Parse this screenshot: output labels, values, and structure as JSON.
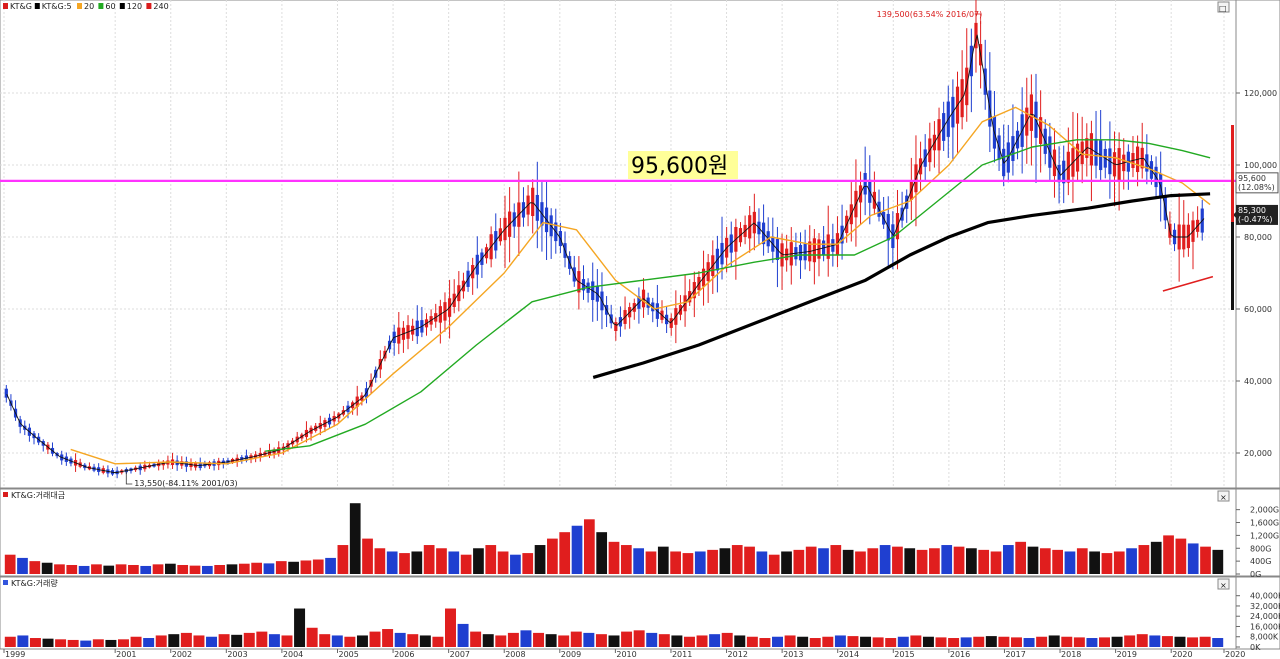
{
  "chart_data": [
    {
      "type": "candlestick",
      "panel": "price",
      "title": "",
      "ticker": "KT&G",
      "legend": [
        {
          "name": "KT&G",
          "color": "#d91c1c"
        },
        {
          "name": "KT&G:5",
          "color": "#000000"
        },
        {
          "name": "20",
          "color": "#f5a623"
        },
        {
          "name": "60",
          "color": "#22aa22"
        },
        {
          "name": "120",
          "color": "#000000"
        },
        {
          "name": "240",
          "color": "#d91c1c"
        }
      ],
      "ylim": [
        0,
        145000
      ],
      "y_ticks": [
        "20,000",
        "40,000",
        "60,000",
        "80,000",
        "100,000",
        "120,000"
      ],
      "y_tick_values": [
        20000,
        40000,
        60000,
        80000,
        100000,
        120000
      ],
      "x_ticks": [
        "1999",
        "2001",
        "2002",
        "2003",
        "2004",
        "2005",
        "2006",
        "2007",
        "2008",
        "2009",
        "2010",
        "2011",
        "2012",
        "2013",
        "2014",
        "2015",
        "2016",
        "2017",
        "2018",
        "2019",
        "2020",
        "2020"
      ],
      "x_tick_values": [
        1999.0,
        2001.0,
        2002.0,
        2003.0,
        2004.0,
        2005.0,
        2006.0,
        2007.0,
        2008.0,
        2009.0,
        2010.0,
        2011.0,
        2012.0,
        2013.0,
        2014.0,
        2015.0,
        2016.0,
        2017.0,
        2018.0,
        2019.0,
        2020.0,
        2020.95
      ],
      "close_series": [
        [
          1999.0,
          38000
        ],
        [
          1999.3,
          28000
        ],
        [
          1999.6,
          24000
        ],
        [
          2000.0,
          19000
        ],
        [
          2000.5,
          16000
        ],
        [
          2001.0,
          14500
        ],
        [
          2001.5,
          16000
        ],
        [
          2002.0,
          17500
        ],
        [
          2002.5,
          16500
        ],
        [
          2003.0,
          17500
        ],
        [
          2003.5,
          19000
        ],
        [
          2004.0,
          21000
        ],
        [
          2004.5,
          26000
        ],
        [
          2005.0,
          30000
        ],
        [
          2005.5,
          36000
        ],
        [
          2006.0,
          52000
        ],
        [
          2006.5,
          55000
        ],
        [
          2007.0,
          60000
        ],
        [
          2007.5,
          72000
        ],
        [
          2008.0,
          82000
        ],
        [
          2008.5,
          90000
        ],
        [
          2009.0,
          80000
        ],
        [
          2009.3,
          68000
        ],
        [
          2009.7,
          64000
        ],
        [
          2010.0,
          55000
        ],
        [
          2010.5,
          63000
        ],
        [
          2011.0,
          56000
        ],
        [
          2011.5,
          67000
        ],
        [
          2012.0,
          77000
        ],
        [
          2012.5,
          84000
        ],
        [
          2013.0,
          75000
        ],
        [
          2013.5,
          76000
        ],
        [
          2014.0,
          78000
        ],
        [
          2014.5,
          95000
        ],
        [
          2015.0,
          80000
        ],
        [
          2015.5,
          100000
        ],
        [
          2016.0,
          113000
        ],
        [
          2016.3,
          120000
        ],
        [
          2016.5,
          137000
        ],
        [
          2016.8,
          110000
        ],
        [
          2017.0,
          100000
        ],
        [
          2017.5,
          115000
        ],
        [
          2018.0,
          97000
        ],
        [
          2018.5,
          105000
        ],
        [
          2019.0,
          100000
        ],
        [
          2019.5,
          102000
        ],
        [
          2019.8,
          95000
        ],
        [
          2020.0,
          80000
        ],
        [
          2020.3,
          80000
        ],
        [
          2020.6,
          85300
        ]
      ],
      "ma20": [
        [
          2000.2,
          21000
        ],
        [
          2001.0,
          17000
        ],
        [
          2002.0,
          17500
        ],
        [
          2003.0,
          17000
        ],
        [
          2004.0,
          20000
        ],
        [
          2005.0,
          28000
        ],
        [
          2006.0,
          42000
        ],
        [
          2007.0,
          55000
        ],
        [
          2008.0,
          70000
        ],
        [
          2008.7,
          84000
        ],
        [
          2009.3,
          82000
        ],
        [
          2010.0,
          68000
        ],
        [
          2010.7,
          60000
        ],
        [
          2011.3,
          62000
        ],
        [
          2012.0,
          72000
        ],
        [
          2012.8,
          80000
        ],
        [
          2013.5,
          78000
        ],
        [
          2014.0,
          78000
        ],
        [
          2014.6,
          86000
        ],
        [
          2015.3,
          90000
        ],
        [
          2016.0,
          100000
        ],
        [
          2016.6,
          112000
        ],
        [
          2017.2,
          116000
        ],
        [
          2017.8,
          111000
        ],
        [
          2018.4,
          103000
        ],
        [
          2019.0,
          102000
        ],
        [
          2019.6,
          99000
        ],
        [
          2020.2,
          95000
        ],
        [
          2020.7,
          89000
        ]
      ],
      "ma60": [
        [
          2003.7,
          20500
        ],
        [
          2004.5,
          22000
        ],
        [
          2005.5,
          28000
        ],
        [
          2006.5,
          37000
        ],
        [
          2007.5,
          50000
        ],
        [
          2008.5,
          62000
        ],
        [
          2009.5,
          66000
        ],
        [
          2010.5,
          68000
        ],
        [
          2011.5,
          70000
        ],
        [
          2012.5,
          73000
        ],
        [
          2013.3,
          75000
        ],
        [
          2014.3,
          75000
        ],
        [
          2015.0,
          80000
        ],
        [
          2015.8,
          90000
        ],
        [
          2016.6,
          100000
        ],
        [
          2017.5,
          105000
        ],
        [
          2018.3,
          107000
        ],
        [
          2019.0,
          107000
        ],
        [
          2019.6,
          106000
        ],
        [
          2020.2,
          104000
        ],
        [
          2020.7,
          102000
        ]
      ],
      "ma120": [
        [
          2009.6,
          41000
        ],
        [
          2010.5,
          45000
        ],
        [
          2011.5,
          50000
        ],
        [
          2012.5,
          56000
        ],
        [
          2013.5,
          62000
        ],
        [
          2014.5,
          68000
        ],
        [
          2015.3,
          75000
        ],
        [
          2016.0,
          80000
        ],
        [
          2016.7,
          84000
        ],
        [
          2017.5,
          86000
        ],
        [
          2018.5,
          88000
        ],
        [
          2019.3,
          90000
        ],
        [
          2020.0,
          91500
        ],
        [
          2020.7,
          92000
        ]
      ],
      "support_line": [
        [
          2019.85,
          65000
        ],
        [
          2020.75,
          69000
        ]
      ],
      "annotations": [
        {
          "text": "139,500(63.54% 2016/07)",
          "x": 2016.5,
          "y": 139500
        },
        {
          "text": "13,550(-84.11% 2001/03)",
          "x": 2001.2,
          "y": 13550
        },
        {
          "text": "95,600원",
          "y": 95600
        },
        {
          "text": "95,600",
          "sub": "(12.08%)",
          "y": 95600
        },
        {
          "text": "85,300",
          "sub": "(-0.47%)",
          "y": 85300
        }
      ],
      "horizontal_line": {
        "y": 95600,
        "color": "#ff33ff"
      }
    },
    {
      "type": "bar",
      "panel": "trading_value",
      "title": "KT&G:거래대금",
      "y_ticks": [
        "2,000G",
        "1,600G",
        "1,200G",
        "800G",
        "400G",
        "0G"
      ],
      "y_tick_values": [
        2000,
        1600,
        1200,
        800,
        400,
        0
      ],
      "ylim": [
        0,
        2300
      ],
      "values": [
        600,
        500,
        400,
        350,
        300,
        280,
        250,
        300,
        260,
        300,
        280,
        250,
        300,
        320,
        280,
        260,
        250,
        280,
        300,
        320,
        350,
        330,
        400,
        380,
        420,
        450,
        500,
        900,
        2200,
        1100,
        800,
        700,
        650,
        700,
        900,
        800,
        700,
        600,
        800,
        900,
        700,
        600,
        650,
        900,
        1100,
        1300,
        1500,
        1700,
        1300,
        1000,
        900,
        800,
        700,
        850,
        700,
        650,
        700,
        750,
        800,
        900,
        850,
        700,
        600,
        700,
        750,
        850,
        800,
        900,
        750,
        700,
        800,
        900,
        850,
        800,
        750,
        800,
        900,
        850,
        800,
        750,
        700,
        900,
        1000,
        850,
        800,
        750,
        700,
        800,
        700,
        650,
        700,
        800,
        900,
        1000,
        1200,
        1100,
        950,
        850,
        750
      ]
    },
    {
      "type": "bar",
      "panel": "volume",
      "title": "KT&G:거래량",
      "y_ticks": [
        "40,000K",
        "32,000K",
        "24,000K",
        "16,000K",
        "8,000K",
        "0K"
      ],
      "y_tick_values": [
        40000,
        32000,
        24000,
        16000,
        8000,
        0
      ],
      "ylim": [
        0,
        46000
      ],
      "values": [
        8000,
        9000,
        7000,
        6500,
        6000,
        5500,
        5000,
        6000,
        5500,
        6000,
        8000,
        7000,
        9000,
        10000,
        11000,
        9000,
        8000,
        10000,
        9500,
        11000,
        12000,
        10000,
        9000,
        30000,
        15000,
        10000,
        9000,
        8000,
        9000,
        12000,
        14000,
        11000,
        10000,
        9000,
        8000,
        30000,
        18000,
        12000,
        10000,
        9000,
        11000,
        13000,
        11000,
        10000,
        9000,
        12000,
        11000,
        10000,
        9000,
        12000,
        13000,
        11000,
        10000,
        9000,
        8000,
        9000,
        10000,
        11000,
        9000,
        8000,
        7000,
        8000,
        9000,
        8000,
        7000,
        8000,
        9000,
        8500,
        8000,
        7500,
        7000,
        8000,
        9000,
        8000,
        7500,
        7000,
        7500,
        8000,
        8500,
        8000,
        7500,
        7000,
        8000,
        9000,
        8000,
        7500,
        7000,
        7500,
        8000,
        9000,
        10000,
        9000,
        8500,
        8000,
        7500,
        8000,
        7000
      ]
    }
  ],
  "toolbar": {
    "win_buttons": [
      "□",
      "×"
    ]
  }
}
